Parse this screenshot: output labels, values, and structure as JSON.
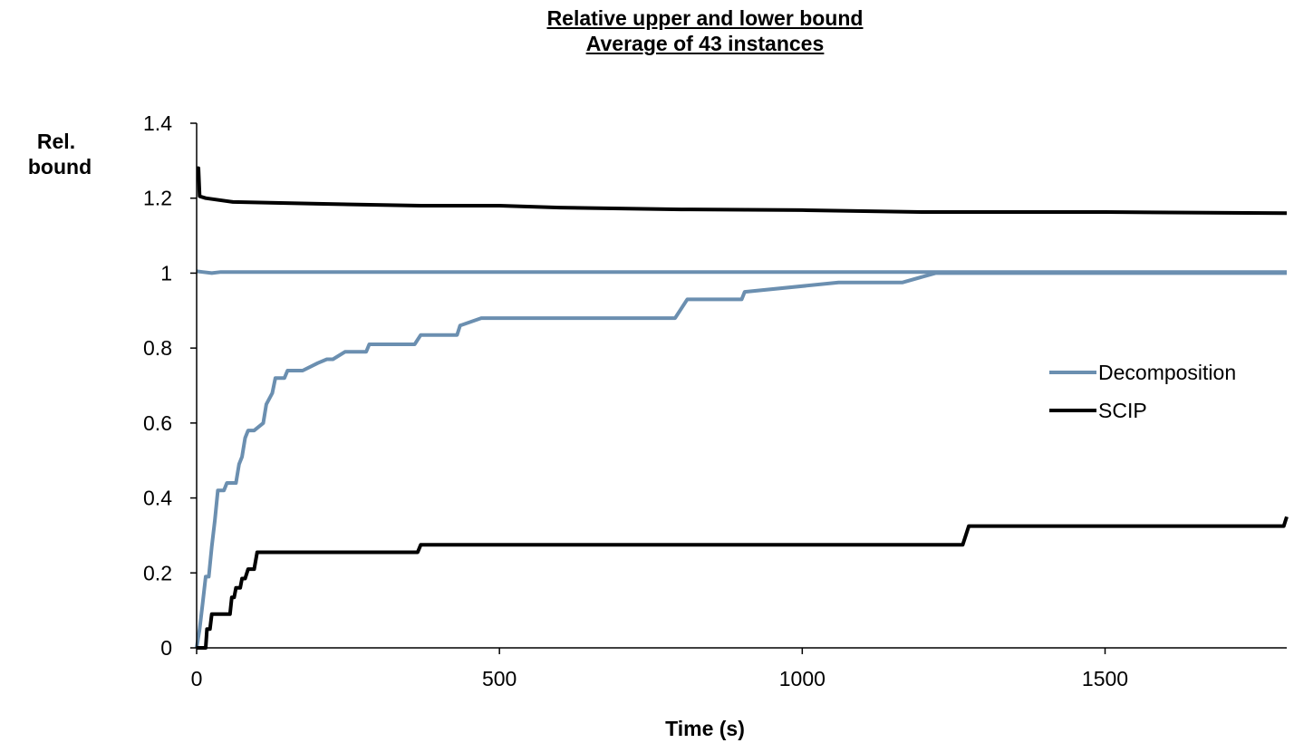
{
  "chart_data": {
    "type": "line",
    "title": "Relative upper and lower bound",
    "subtitle": "Average of 43 instances",
    "xlabel": "Time (s)",
    "ylabel": "Rel. bound",
    "ylabel_lines": [
      "Rel.",
      "bound"
    ],
    "xlim": [
      0,
      1800
    ],
    "ylim": [
      0,
      1.4
    ],
    "x_ticks": [
      0,
      500,
      1000,
      1500
    ],
    "y_ticks": [
      0,
      0.2,
      0.4,
      0.6,
      0.8,
      1,
      1.2,
      1.4
    ],
    "y_tick_labels": [
      "0",
      "0.2",
      "0.4",
      "0.6",
      "0.8",
      "1",
      "1.2",
      "1.4"
    ],
    "x_tick_labels": [
      "0",
      "500",
      "1000",
      "1500"
    ],
    "grid": false,
    "legend_position": "right",
    "legend": [
      {
        "name": "Decomposition",
        "color": "#6b8fb0"
      },
      {
        "name": "SCIP",
        "color": "#000000"
      }
    ],
    "series": [
      {
        "name": "Decomposition",
        "role": "upper",
        "color": "#6b8fb0",
        "points": [
          [
            0,
            1.005
          ],
          [
            10,
            1.003
          ],
          [
            25,
            1.0
          ],
          [
            40,
            1.003
          ],
          [
            1800,
            1.003
          ]
        ]
      },
      {
        "name": "Decomposition",
        "role": "lower",
        "color": "#6b8fb0",
        "points": [
          [
            0,
            0
          ],
          [
            5,
            0.05
          ],
          [
            10,
            0.12
          ],
          [
            15,
            0.19
          ],
          [
            20,
            0.19
          ],
          [
            25,
            0.27
          ],
          [
            30,
            0.34
          ],
          [
            35,
            0.42
          ],
          [
            45,
            0.42
          ],
          [
            50,
            0.44
          ],
          [
            65,
            0.44
          ],
          [
            70,
            0.49
          ],
          [
            75,
            0.51
          ],
          [
            80,
            0.56
          ],
          [
            85,
            0.58
          ],
          [
            95,
            0.58
          ],
          [
            110,
            0.6
          ],
          [
            115,
            0.65
          ],
          [
            125,
            0.68
          ],
          [
            130,
            0.72
          ],
          [
            145,
            0.72
          ],
          [
            150,
            0.74
          ],
          [
            175,
            0.74
          ],
          [
            200,
            0.76
          ],
          [
            215,
            0.77
          ],
          [
            225,
            0.77
          ],
          [
            245,
            0.79
          ],
          [
            280,
            0.79
          ],
          [
            285,
            0.81
          ],
          [
            360,
            0.81
          ],
          [
            370,
            0.835
          ],
          [
            430,
            0.835
          ],
          [
            435,
            0.86
          ],
          [
            470,
            0.88
          ],
          [
            790,
            0.88
          ],
          [
            810,
            0.93
          ],
          [
            900,
            0.93
          ],
          [
            905,
            0.95
          ],
          [
            1060,
            0.975
          ],
          [
            1165,
            0.975
          ],
          [
            1220,
            1.0
          ],
          [
            1800,
            1.0
          ]
        ]
      },
      {
        "name": "SCIP",
        "role": "upper",
        "color": "#000000",
        "points": [
          [
            0,
            1.28
          ],
          [
            3,
            1.28
          ],
          [
            5,
            1.205
          ],
          [
            15,
            1.2
          ],
          [
            60,
            1.19
          ],
          [
            200,
            1.185
          ],
          [
            370,
            1.18
          ],
          [
            500,
            1.18
          ],
          [
            600,
            1.175
          ],
          [
            800,
            1.17
          ],
          [
            1000,
            1.168
          ],
          [
            1200,
            1.163
          ],
          [
            1500,
            1.163
          ],
          [
            1800,
            1.16
          ]
        ]
      },
      {
        "name": "SCIP",
        "role": "lower",
        "color": "#000000",
        "points": [
          [
            0,
            0
          ],
          [
            15,
            0
          ],
          [
            17,
            0.05
          ],
          [
            22,
            0.05
          ],
          [
            25,
            0.09
          ],
          [
            55,
            0.09
          ],
          [
            58,
            0.135
          ],
          [
            62,
            0.135
          ],
          [
            65,
            0.16
          ],
          [
            72,
            0.16
          ],
          [
            75,
            0.185
          ],
          [
            80,
            0.185
          ],
          [
            85,
            0.21
          ],
          [
            95,
            0.21
          ],
          [
            100,
            0.255
          ],
          [
            365,
            0.255
          ],
          [
            370,
            0.275
          ],
          [
            1265,
            0.275
          ],
          [
            1270,
            0.3
          ],
          [
            1275,
            0.325
          ],
          [
            1795,
            0.325
          ],
          [
            1800,
            0.35
          ]
        ]
      }
    ]
  }
}
